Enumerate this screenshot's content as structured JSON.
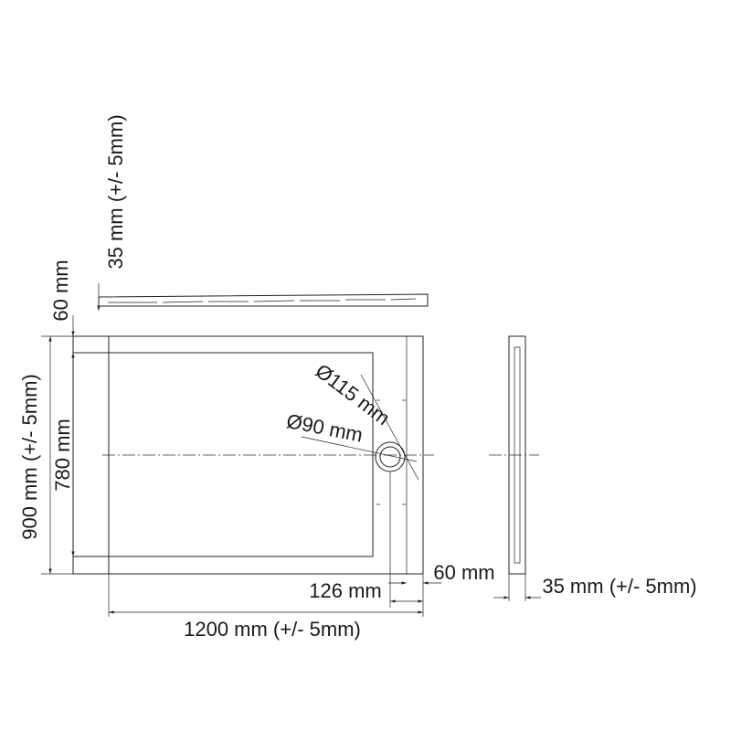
{
  "dimensions": {
    "side_height": "35 mm (+/- 5mm)",
    "border_top": "60 mm",
    "width": "900 mm (+/- 5mm)",
    "inner_width": "780 mm",
    "outer_drain_diameter": "Ø115 mm",
    "inner_drain_diameter": "Ø90 mm",
    "border_right": "60 mm",
    "drain_offset": "126 mm",
    "length": "1200 mm (+/- 5mm)",
    "end_height": "35 mm (+/- 5mm)"
  }
}
